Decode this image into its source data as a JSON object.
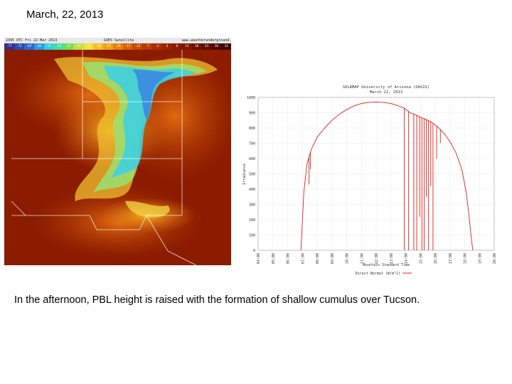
{
  "slide": {
    "title": "March, 22, 2013",
    "caption": "In the afternoon, PBL height is raised with the formation of shallow cumulus over Tucson."
  },
  "satellite": {
    "header_left": "2345 UTC Fri 22 Mar 2013",
    "header_mid": "GOES Satellite",
    "header_right": "www.weatherunderground.com",
    "scale_labels": [
      "-77",
      "-72",
      "-67",
      "-62",
      "-57",
      "-52",
      "-47",
      "-42",
      "-37",
      "-32",
      "-27",
      "-22",
      "-17",
      "-12",
      "-7",
      "-2",
      "3",
      "8",
      "13",
      "18",
      "23",
      "28",
      "33"
    ],
    "scale_colors": [
      "#3a2a8a",
      "#2a4aaa",
      "#2a6ad0",
      "#2a9ae0",
      "#2ad0e0",
      "#40e0a0",
      "#70e060",
      "#c0e040",
      "#f0e030",
      "#f0c020",
      "#f0a010",
      "#e88008",
      "#d86004",
      "#c84800",
      "#b83800",
      "#a82c00",
      "#9a2200",
      "#8c1a00",
      "#801400",
      "#701000",
      "#600c00",
      "#500800",
      "#400400"
    ]
  },
  "chart_data": {
    "type": "line",
    "title": "SOLRMAP University of Arizona (OASIS)",
    "subtitle": "March 22, 2013",
    "ylabel": "Irradiance",
    "xlabel": "Mountain Standard Time",
    "ylim": [
      0,
      1000
    ],
    "yticks": [
      0,
      100,
      200,
      300,
      400,
      500,
      600,
      700,
      800,
      900,
      1000
    ],
    "xticks": [
      "04:00",
      "05:00",
      "06:00",
      "07:00",
      "08:00",
      "09:00",
      "10:00",
      "11:00",
      "12:00",
      "13:00",
      "14:00",
      "15:00",
      "16:00",
      "17:00",
      "18:00",
      "19:00",
      "20:00"
    ],
    "legend": "Direct Normal (W/m^2)",
    "legend_position": "bottom",
    "series": [
      {
        "name": "Direct Normal (W/m^2)",
        "color": "#e02020",
        "x": [
          6.9,
          7.0,
          7.1,
          7.3,
          7.6,
          8.0,
          8.5,
          9.0,
          9.5,
          10.0,
          10.5,
          11.0,
          11.5,
          12.0,
          12.5,
          13.0,
          13.5,
          13.9,
          14.3,
          14.7,
          15.0,
          15.4,
          15.8,
          16.2,
          16.6,
          17.0,
          17.4,
          17.8,
          18.1,
          18.3,
          18.45,
          18.55
        ],
        "y": [
          0,
          200,
          380,
          560,
          660,
          740,
          800,
          850,
          890,
          920,
          945,
          960,
          968,
          970,
          968,
          960,
          945,
          930,
          900,
          885,
          870,
          855,
          835,
          805,
          765,
          710,
          640,
          530,
          380,
          220,
          80,
          0
        ],
        "dips": [
          {
            "x": 7.45,
            "y": 430
          },
          {
            "x": 7.55,
            "y": 530
          },
          {
            "x": 13.9,
            "y": 0
          },
          {
            "x": 14.2,
            "y": 0
          },
          {
            "x": 14.55,
            "y": 0
          },
          {
            "x": 14.75,
            "y": 0
          },
          {
            "x": 14.95,
            "y": 220
          },
          {
            "x": 15.1,
            "y": 0
          },
          {
            "x": 15.25,
            "y": 0
          },
          {
            "x": 15.4,
            "y": 350
          },
          {
            "x": 15.55,
            "y": 0
          },
          {
            "x": 15.7,
            "y": 420
          },
          {
            "x": 15.85,
            "y": 0
          },
          {
            "x": 16.1,
            "y": 600
          },
          {
            "x": 16.35,
            "y": 700
          }
        ]
      }
    ]
  }
}
